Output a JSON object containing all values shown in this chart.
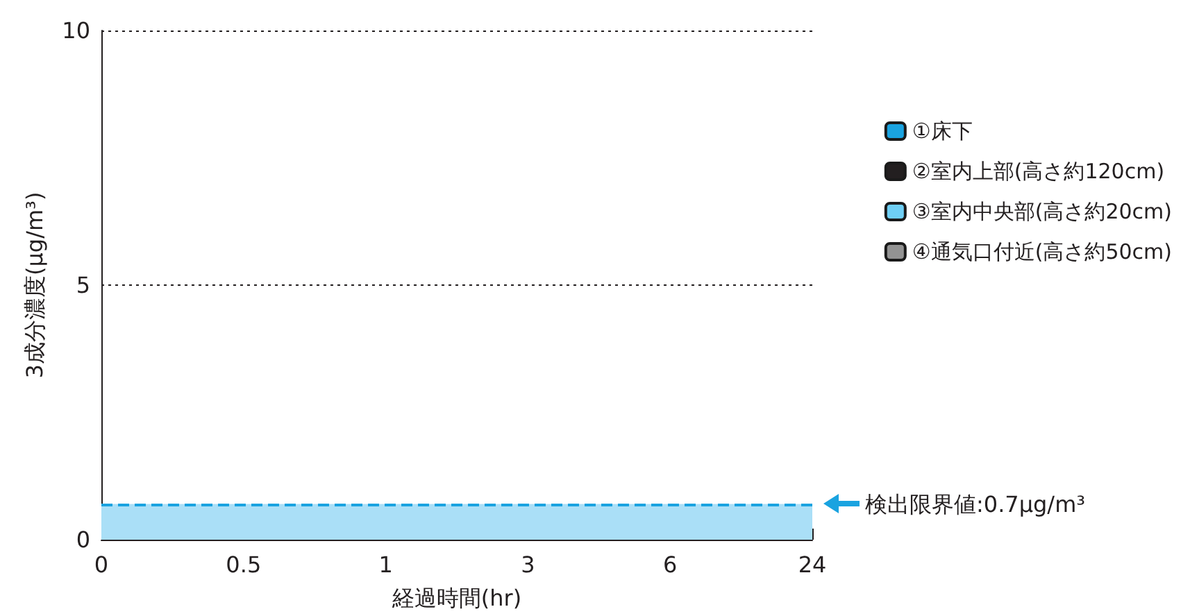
{
  "chart_data": {
    "type": "bar",
    "xlabel": "経過時間(hr)",
    "ylabel": "3成分濃度(μg/m³)",
    "categories": [
      "0",
      "0.5",
      "1",
      "3",
      "6",
      "24"
    ],
    "series": [
      {
        "name": "①床下",
        "color": "#1aa3e0",
        "values": [
          null,
          null,
          null,
          null,
          null,
          null
        ]
      },
      {
        "name": "②室内上部(高さ約120cm)",
        "color": "#231f20",
        "values": [
          null,
          null,
          null,
          null,
          null,
          null
        ]
      },
      {
        "name": "③室内中央部(高さ約20cm)",
        "color": "#6fcff5",
        "values": [
          null,
          null,
          null,
          null,
          null,
          null
        ]
      },
      {
        "name": "④通気口付近(高さ約50cm)",
        "color": "#939393",
        "values": [
          null,
          null,
          null,
          null,
          null,
          null
        ]
      }
    ],
    "ylim": [
      0,
      10
    ],
    "yticks": [
      0,
      5,
      10
    ],
    "grid": "y",
    "line_style": "dotted",
    "legend": "right",
    "ref_lines": [
      {
        "axis": "y",
        "value": 0.7,
        "label": "検出限界値:0.7μg/m³",
        "color": "#1aa3e0",
        "line_style": "dashed"
      }
    ],
    "bands": [
      {
        "axis": "y",
        "from": 0,
        "to": 0.7,
        "color": "#aadff7"
      }
    ]
  }
}
